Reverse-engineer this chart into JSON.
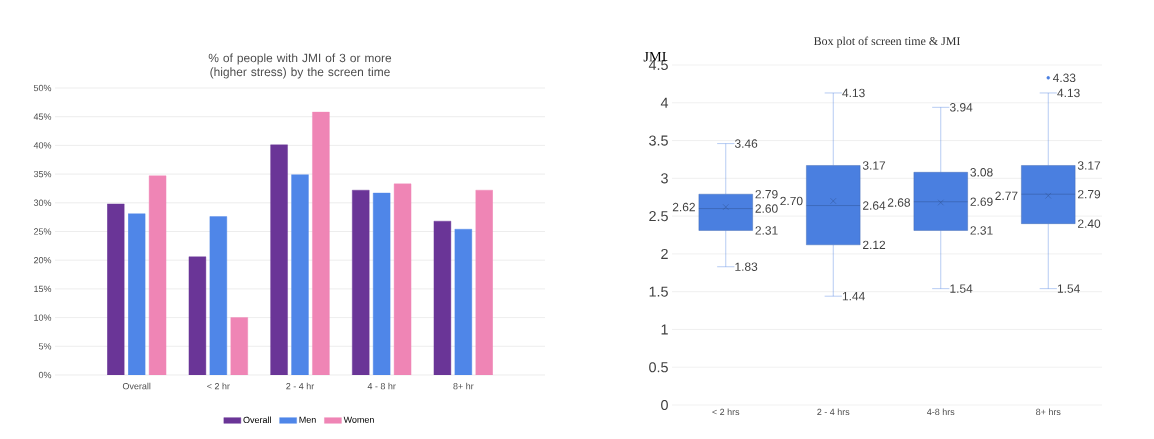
{
  "chart_data": [
    {
      "type": "bar",
      "title": "% of people with JMI of 3 or more (higher stress)  by the screen time",
      "categories": [
        "Overall",
        "< 2 hr",
        "2 - 4 hr",
        "4 - 8 hr",
        "8+ hr"
      ],
      "series": [
        {
          "name": "Overall",
          "color": "#6a3597",
          "values": [
            29.8,
            20.6,
            40.1,
            32.2,
            26.8
          ]
        },
        {
          "name": "Men",
          "color": "#4f86e8",
          "values": [
            28.1,
            27.6,
            34.9,
            31.7,
            25.4
          ]
        },
        {
          "name": "Women",
          "color": "#ef85b5",
          "values": [
            34.7,
            10.0,
            45.8,
            33.3,
            32.2
          ]
        }
      ],
      "ylim": [
        0,
        50
      ],
      "yticks": [
        {
          "value": 0,
          "label": "0%"
        },
        {
          "value": 5,
          "label": "5%"
        },
        {
          "value": 10,
          "label": "10%"
        },
        {
          "value": 15,
          "label": "15%"
        },
        {
          "value": 20,
          "label": "20%"
        },
        {
          "value": 25,
          "label": "25%"
        },
        {
          "value": 30,
          "label": "30%"
        },
        {
          "value": 35,
          "label": "35%"
        },
        {
          "value": 40,
          "label": "40%"
        },
        {
          "value": 45,
          "label": "45%"
        },
        {
          "value": 50,
          "label": "50%"
        }
      ],
      "grid": "y",
      "legend": "bottom"
    },
    {
      "type": "box",
      "title": "Box plot of screen time & JMI",
      "ylabel": "JMI",
      "categories": [
        "< 2 hrs",
        "2 - 4 hrs",
        "4-8 hrs",
        "8+ hrs"
      ],
      "color": "#4a7fe0",
      "boxes": [
        {
          "low": 1.83,
          "q1": 2.31,
          "median": 2.6,
          "q3": 2.79,
          "high": 3.46,
          "mean": 2.62
        },
        {
          "low": 1.44,
          "q1": 2.12,
          "median": 2.64,
          "q3": 3.17,
          "high": 4.13,
          "mean": 2.7
        },
        {
          "low": 1.54,
          "q1": 2.31,
          "median": 2.69,
          "q3": 3.08,
          "high": 3.94,
          "mean": 2.68
        },
        {
          "low": 1.54,
          "q1": 2.4,
          "median": 2.79,
          "q3": 3.17,
          "high": 4.13,
          "mean": 2.77,
          "outliers": [
            4.33
          ]
        }
      ],
      "ylim": [
        0,
        4.5
      ],
      "yticks": [
        0,
        0.5,
        1,
        1.5,
        2,
        2.5,
        3,
        3.5,
        4,
        4.5
      ],
      "annotations": [
        {
          "text": "1.83",
          "x": "< 2 hrs",
          "y": 1.83
        },
        {
          "text": "2.31",
          "x": "< 2 hrs",
          "y": 2.31
        },
        {
          "text": "2.60",
          "x": "< 2 hrs",
          "y": 2.6
        },
        {
          "text": "2.79",
          "x": "< 2 hrs",
          "y": 2.79
        },
        {
          "text": "3.46",
          "x": "< 2 hrs",
          "y": 3.46
        },
        {
          "text": "2.62",
          "x": "< 2 hrs",
          "y": 2.62
        },
        {
          "text": "1.44",
          "x": "2 - 4 hrs",
          "y": 1.44
        },
        {
          "text": "2.12",
          "x": "2 - 4 hrs",
          "y": 2.12
        },
        {
          "text": "2.64",
          "x": "2 - 4 hrs",
          "y": 2.64
        },
        {
          "text": "3.17",
          "x": "2 - 4 hrs",
          "y": 3.17
        },
        {
          "text": "4.13",
          "x": "2 - 4 hrs",
          "y": 4.13
        },
        {
          "text": "2.70",
          "x": "2 - 4 hrs",
          "y": 2.7
        },
        {
          "text": "1.54",
          "x": "4-8 hrs",
          "y": 1.54
        },
        {
          "text": "2.31",
          "x": "4-8 hrs",
          "y": 2.31
        },
        {
          "text": "2.69",
          "x": "4-8 hrs",
          "y": 2.69
        },
        {
          "text": "3.08",
          "x": "4-8 hrs",
          "y": 3.08
        },
        {
          "text": "3.94",
          "x": "4-8 hrs",
          "y": 3.94
        },
        {
          "text": "2.68",
          "x": "4-8 hrs",
          "y": 2.68
        },
        {
          "text": "1.54",
          "x": "8+ hrs",
          "y": 1.54
        },
        {
          "text": "2.40",
          "x": "8+ hrs",
          "y": 2.4
        },
        {
          "text": "2.79",
          "x": "8+ hrs",
          "y": 2.79
        },
        {
          "text": "3.17",
          "x": "8+ hrs",
          "y": 3.17
        },
        {
          "text": "4.13",
          "x": "8+ hrs",
          "y": 4.13
        },
        {
          "text": "2.77",
          "x": "8+ hrs",
          "y": 2.77
        },
        "4.33"
      ],
      "grid": "y"
    }
  ]
}
